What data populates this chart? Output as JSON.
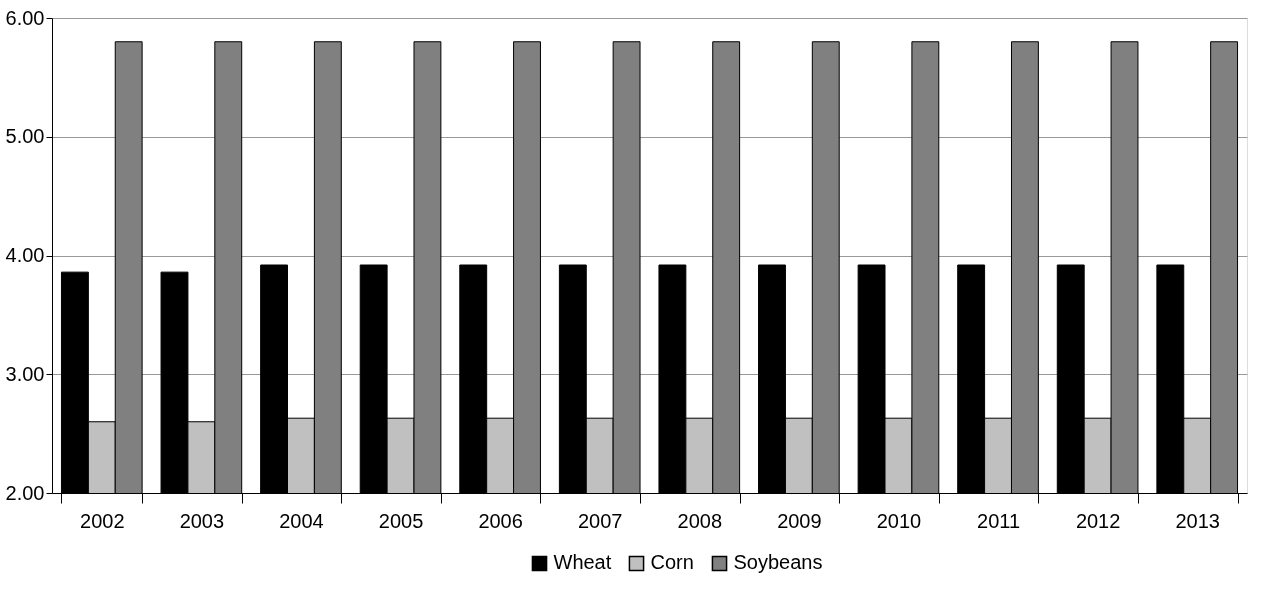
{
  "chart_data": {
    "type": "bar",
    "categories": [
      "2002",
      "2003",
      "2004",
      "2005",
      "2006",
      "2007",
      "2008",
      "2009",
      "2010",
      "2011",
      "2012",
      "2013"
    ],
    "series": [
      {
        "name": "Wheat",
        "color": "#000000",
        "values": [
          3.86,
          3.86,
          3.92,
          3.92,
          3.92,
          3.92,
          3.92,
          3.92,
          3.92,
          3.92,
          3.92,
          3.92
        ]
      },
      {
        "name": "Corn",
        "color": "#c0c0c0",
        "values": [
          2.6,
          2.6,
          2.63,
          2.63,
          2.63,
          2.63,
          2.63,
          2.63,
          2.63,
          2.63,
          2.63,
          2.63
        ]
      },
      {
        "name": "Soybeans",
        "color": "#808080",
        "values": [
          5.8,
          5.8,
          5.8,
          5.8,
          5.8,
          5.8,
          5.8,
          5.8,
          5.8,
          5.8,
          5.8,
          5.8
        ]
      }
    ],
    "ylim": [
      2.0,
      6.0
    ],
    "yticks": [
      {
        "value": 2,
        "label": "2.00"
      },
      {
        "value": 3,
        "label": "3.00"
      },
      {
        "value": 4,
        "label": "4.00"
      },
      {
        "value": 5,
        "label": "5.00"
      },
      {
        "value": 6,
        "label": "6.00"
      }
    ],
    "grid": "y",
    "legend": "bottom"
  }
}
